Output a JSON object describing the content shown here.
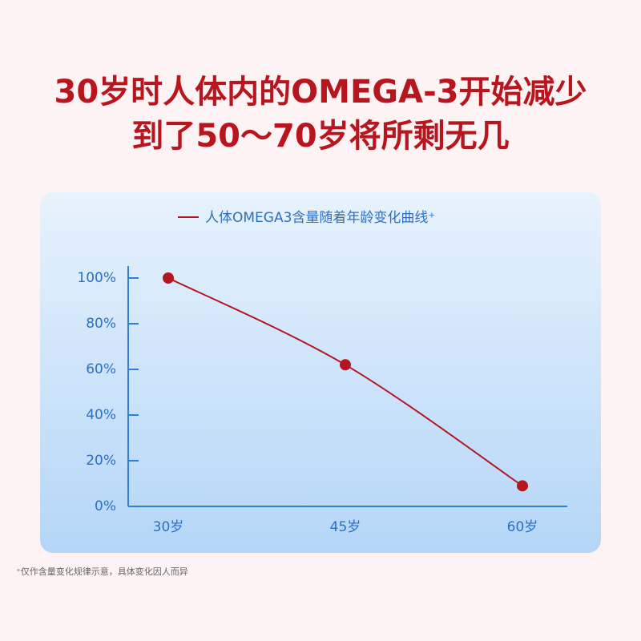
{
  "chart_data": {
    "type": "line",
    "title_lines": [
      "30岁时人体内的OMEGA-3开始减少",
      "到了50～70岁将所剩无几"
    ],
    "categories": [
      "30岁",
      "45岁",
      "60岁"
    ],
    "series": [
      {
        "name": "人体OMEGA3含量随着年龄变化曲线⁺",
        "color": "#b3161f",
        "values": [
          100,
          62,
          9
        ]
      }
    ],
    "ylim": [
      0,
      100
    ],
    "yticks": [
      {
        "value": 0,
        "label": "0%"
      },
      {
        "value": 20,
        "label": "20%"
      },
      {
        "value": 40,
        "label": "40%"
      },
      {
        "value": 60,
        "label": "60%"
      },
      {
        "value": 80,
        "label": "80%"
      },
      {
        "value": 100,
        "label": "100%"
      }
    ],
    "legend": "top",
    "footnote": "⁺仅作含量变化规律示意，具体变化因人而异"
  }
}
